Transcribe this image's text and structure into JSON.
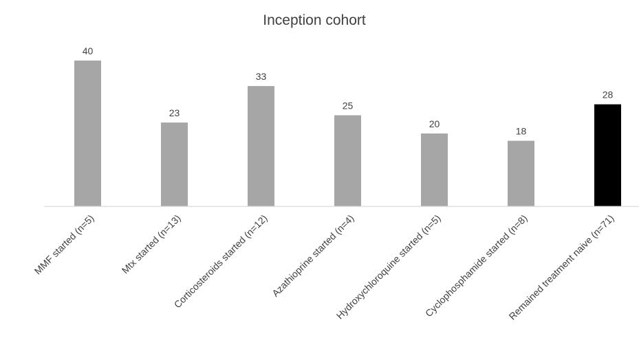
{
  "chart_data": {
    "type": "bar",
    "title": "Inception cohort",
    "xlabel": "",
    "ylabel": "",
    "categories": [
      "MMF started (n=5)",
      "Mtx started (n=13)",
      "Corticosteroids started (n=12)",
      "Azathioprine started (n=4)",
      "Hydroxychloroquine started (n=5)",
      "Cyclophosphamide started (n=8)",
      "Remained treatment naive (n=71)"
    ],
    "values": [
      40,
      23,
      33,
      25,
      20,
      18,
      28
    ],
    "data_labels": [
      "40",
      "23",
      "33",
      "25",
      "20",
      "18",
      "28"
    ],
    "bar_colors": [
      "#a6a6a6",
      "#a6a6a6",
      "#a6a6a6",
      "#a6a6a6",
      "#a6a6a6",
      "#a6a6a6",
      "#000000"
    ],
    "ylim": [
      0,
      40
    ],
    "grid": false,
    "legend": "none",
    "axis_color": "#d9d9d9"
  }
}
